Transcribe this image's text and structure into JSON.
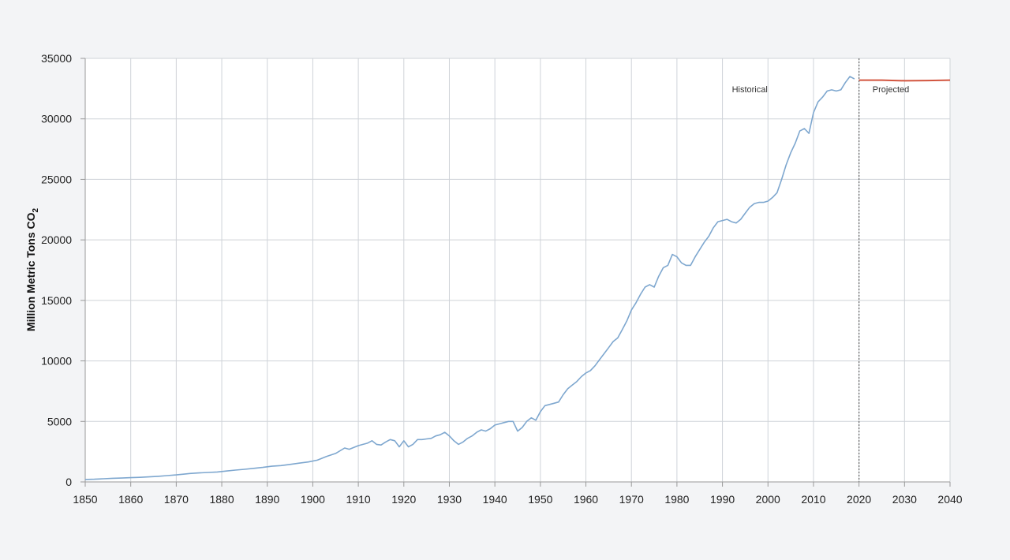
{
  "chart_data": {
    "type": "line",
    "title": "",
    "xlabel": "",
    "ylabel": "Million Metric Tons CO",
    "ylabel_subscript": "2",
    "xlim": [
      1850,
      2040
    ],
    "ylim": [
      0,
      35000
    ],
    "x_ticks": [
      1850,
      1860,
      1870,
      1880,
      1890,
      1900,
      1910,
      1920,
      1930,
      1940,
      1950,
      1960,
      1970,
      1980,
      1990,
      2000,
      2010,
      2020,
      2030,
      2040
    ],
    "y_ticks": [
      0,
      5000,
      10000,
      15000,
      20000,
      25000,
      30000,
      35000
    ],
    "grid": true,
    "divider_year": 2020,
    "annotations": [
      {
        "text": "Historical",
        "x": 1996,
        "y": 32200
      },
      {
        "text": "Projected",
        "x": 2027,
        "y": 32200
      }
    ],
    "series": [
      {
        "color": "#7ea7cf",
        "x": [
          1850,
          1852,
          1854,
          1856,
          1858,
          1860,
          1862,
          1864,
          1866,
          1868,
          1870,
          1872,
          1873,
          1875,
          1877,
          1879,
          1881,
          1883,
          1885,
          1887,
          1889,
          1891,
          1893,
          1895,
          1897,
          1899,
          1901,
          1903,
          1905,
          1907,
          1908,
          1910,
          1912,
          1913,
          1914,
          1915,
          1916,
          1917,
          1918,
          1919,
          1920,
          1921,
          1922,
          1923,
          1924,
          1925,
          1926,
          1927,
          1928,
          1929,
          1930,
          1931,
          1932,
          1933,
          1934,
          1935,
          1936,
          1937,
          1938,
          1939,
          1940,
          1941,
          1942,
          1943,
          1944,
          1945,
          1946,
          1947,
          1948,
          1949,
          1950,
          1951,
          1952,
          1953,
          1954,
          1955,
          1956,
          1957,
          1958,
          1959,
          1960,
          1961,
          1962,
          1963,
          1964,
          1965,
          1966,
          1967,
          1968,
          1969,
          1970,
          1971,
          1972,
          1973,
          1974,
          1975,
          1976,
          1977,
          1978,
          1979,
          1980,
          1981,
          1982,
          1983,
          1984,
          1985,
          1986,
          1987,
          1988,
          1989,
          1990,
          1991,
          1992,
          1993,
          1994,
          1995,
          1996,
          1997,
          1998,
          1999,
          2000,
          2001,
          2002,
          2003,
          2004,
          2005,
          2006,
          2007,
          2008,
          2009,
          2010,
          2011,
          2012,
          2013,
          2014,
          2015,
          2016,
          2017,
          2018,
          2019
        ],
        "y": [
          200,
          220,
          260,
          300,
          320,
          350,
          380,
          420,
          460,
          520,
          580,
          660,
          700,
          740,
          780,
          820,
          900,
          980,
          1040,
          1120,
          1200,
          1300,
          1350,
          1450,
          1550,
          1650,
          1800,
          2100,
          2350,
          2800,
          2700,
          3000,
          3200,
          3400,
          3100,
          3050,
          3300,
          3500,
          3400,
          2900,
          3400,
          2900,
          3100,
          3500,
          3500,
          3550,
          3600,
          3800,
          3900,
          4100,
          3800,
          3400,
          3100,
          3300,
          3600,
          3800,
          4100,
          4300,
          4200,
          4400,
          4700,
          4800,
          4900,
          5000,
          5000,
          4200,
          4500,
          5000,
          5300,
          5100,
          5800,
          6300,
          6400,
          6500,
          6600,
          7200,
          7700,
          8000,
          8300,
          8700,
          9000,
          9200,
          9600,
          10100,
          10600,
          11100,
          11600,
          11900,
          12600,
          13300,
          14200,
          14800,
          15500,
          16100,
          16300,
          16100,
          17000,
          17700,
          17900,
          18800,
          18600,
          18100,
          17900,
          17900,
          18600,
          19200,
          19800,
          20300,
          21000,
          21500,
          21600,
          21700,
          21500,
          21400,
          21700,
          22200,
          22700,
          23000,
          23100,
          23100,
          23200,
          23500,
          23900,
          25000,
          26200,
          27200,
          28000,
          29000,
          29200,
          28800,
          30500,
          31400,
          31800,
          32300,
          32400,
          32300,
          32400,
          33000,
          33500,
          33300
        ]
      },
      {
        "color": "#d2553f",
        "x": [
          2020,
          2025,
          2030,
          2035,
          2040
        ],
        "y": [
          33200,
          33200,
          33150,
          33170,
          33200
        ]
      }
    ]
  }
}
